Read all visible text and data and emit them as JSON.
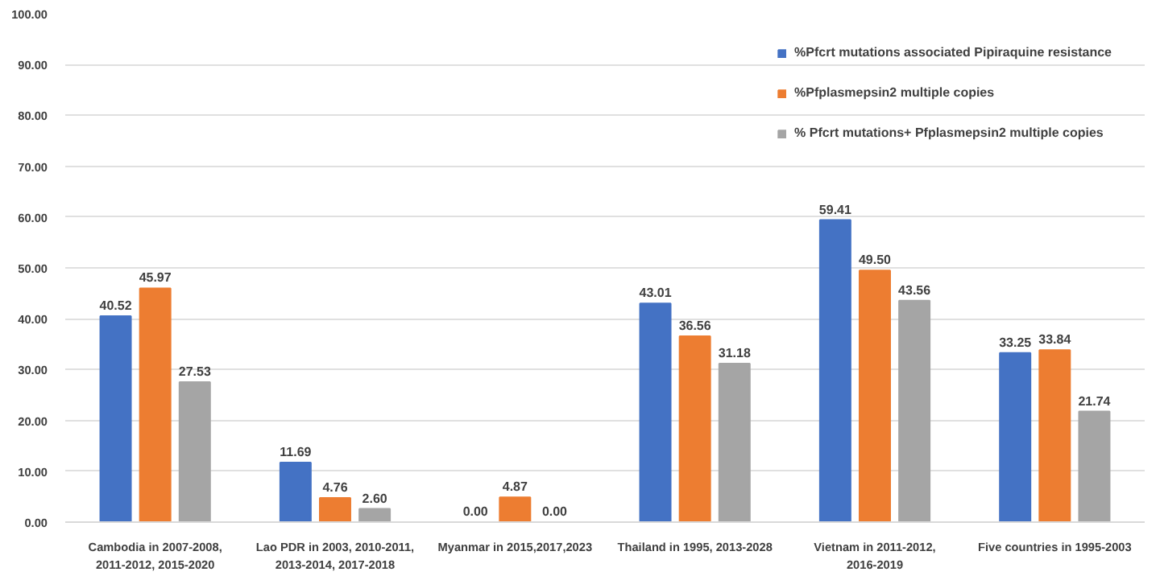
{
  "chart_data": {
    "type": "bar",
    "categories": [
      "Cambodia in 2007-2008,\n2011-2012, 2015-2020",
      "Lao PDR in 2003, 2010-2011,\n2013-2014, 2017-2018",
      "Myanmar in 2015,2017,2023",
      "Thailand in 1995, 2013-2028",
      "Vietnam in 2011-2012,\n2016-2019",
      "Five countries in 1995-2003"
    ],
    "series": [
      {
        "name": "%Pfcrt mutations associated Pipiraquine resistance",
        "color": "#4472c4",
        "values": [
          40.52,
          11.69,
          0.0,
          43.01,
          59.41,
          33.25
        ],
        "value_labels": [
          "40.52",
          "11.69",
          "0.00",
          "43.01",
          "59.41",
          "33.25"
        ]
      },
      {
        "name": "%Pfplasmepsin2 multiple copies",
        "color": "#ed7d31",
        "values": [
          45.97,
          4.76,
          4.87,
          36.56,
          49.5,
          33.84
        ],
        "value_labels": [
          "45.97",
          "4.76",
          "4.87",
          "36.56",
          "49.50",
          "33.84"
        ]
      },
      {
        "name": "% Pfcrt mutations+ Pfplasmepsin2 multiple copies",
        "color": "#a5a5a5",
        "values": [
          27.53,
          2.6,
          0.0,
          31.18,
          43.56,
          21.74
        ],
        "value_labels": [
          "27.53",
          "2.60",
          "0.00",
          "31.18",
          "43.56",
          "21.74"
        ]
      }
    ],
    "ylim": [
      0,
      100
    ],
    "yticks": [
      {
        "value": 0,
        "label": "0.00"
      },
      {
        "value": 10,
        "label": "10.00"
      },
      {
        "value": 20,
        "label": "20.00"
      },
      {
        "value": 30,
        "label": "30.00"
      },
      {
        "value": 40,
        "label": "40.00"
      },
      {
        "value": 50,
        "label": "50.00"
      },
      {
        "value": 60,
        "label": "60.00"
      },
      {
        "value": 70,
        "label": "70.00"
      },
      {
        "value": 80,
        "label": "80.00"
      },
      {
        "value": 90,
        "label": "90.00"
      },
      {
        "value": 100,
        "label": "100.00"
      }
    ],
    "grid": "y",
    "legend": "top right"
  }
}
